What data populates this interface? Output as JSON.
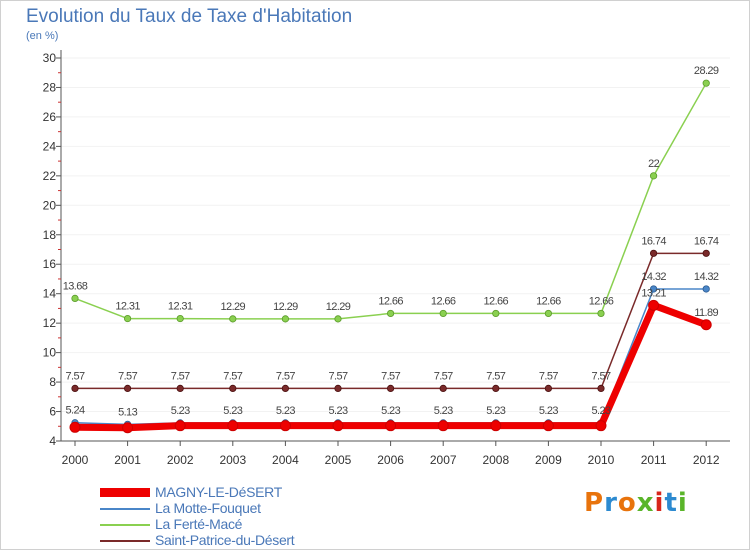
{
  "title": "Evolution du Taux de Taxe d'Habitation",
  "unit": "(en %)",
  "logo": {
    "text": "Proxiti",
    "colors": [
      "#e8730c",
      "#2c8ad0",
      "#e8730c",
      "#5ab52a",
      "#d8261c",
      "#2c8ad0",
      "#5ab52a"
    ]
  },
  "chart_data": {
    "type": "line",
    "title": "Evolution du Taux de Taxe d'Habitation",
    "ylabel": "(en %)",
    "xlabel": "",
    "categories": [
      "2000",
      "2001",
      "2002",
      "2003",
      "2004",
      "2005",
      "2006",
      "2007",
      "2008",
      "2009",
      "2010",
      "2011",
      "2012"
    ],
    "ylim": [
      4,
      30
    ],
    "yticks": [
      "4",
      "6",
      "8",
      "10",
      "12",
      "14",
      "16",
      "18",
      "20",
      "22",
      "24",
      "26",
      "28",
      "30"
    ],
    "legend_position": "bottom-left",
    "series": [
      {
        "name": "MAGNY-LE-DéSERT",
        "color": "#ee0000",
        "values": [
          4.93,
          4.9,
          5.04,
          5.04,
          5.04,
          5.04,
          5.04,
          5.04,
          5.04,
          5.04,
          5.04,
          13.21,
          11.89
        ],
        "labels": [
          "",
          "",
          "",
          "",
          "",
          "",
          "",
          "",
          "",
          "",
          "",
          "13.21",
          "11.89"
        ]
      },
      {
        "name": "La Motte-Fouquet",
        "color": "#4a86c8",
        "values": [
          5.24,
          5.13,
          5.23,
          5.23,
          5.23,
          5.23,
          5.23,
          5.23,
          5.23,
          5.23,
          5.23,
          14.32,
          14.32
        ],
        "labels": [
          "5.24",
          "5.13",
          "5.23",
          "5.23",
          "5.23",
          "5.23",
          "5.23",
          "5.23",
          "5.23",
          "5.23",
          "5.23",
          "14.32",
          "14.32"
        ]
      },
      {
        "name": "La Ferté-Macé",
        "color": "#8ad050",
        "values": [
          13.68,
          12.31,
          12.31,
          12.29,
          12.29,
          12.29,
          12.66,
          12.66,
          12.66,
          12.66,
          12.66,
          22,
          28.29
        ],
        "labels": [
          "13.68",
          "12.31",
          "12.31",
          "12.29",
          "12.29",
          "12.29",
          "12.66",
          "12.66",
          "12.66",
          "12.66",
          "12.66",
          "22",
          "28.29"
        ]
      },
      {
        "name": "Saint-Patrice-du-Désert",
        "color": "#7a2a2a",
        "values": [
          7.57,
          7.57,
          7.57,
          7.57,
          7.57,
          7.57,
          7.57,
          7.57,
          7.57,
          7.57,
          7.57,
          16.74,
          16.74
        ],
        "labels": [
          "7.57",
          "7.57",
          "7.57",
          "7.57",
          "7.57",
          "7.57",
          "7.57",
          "7.57",
          "7.57",
          "7.57",
          "7.57",
          "16.74",
          "16.74"
        ]
      }
    ]
  }
}
